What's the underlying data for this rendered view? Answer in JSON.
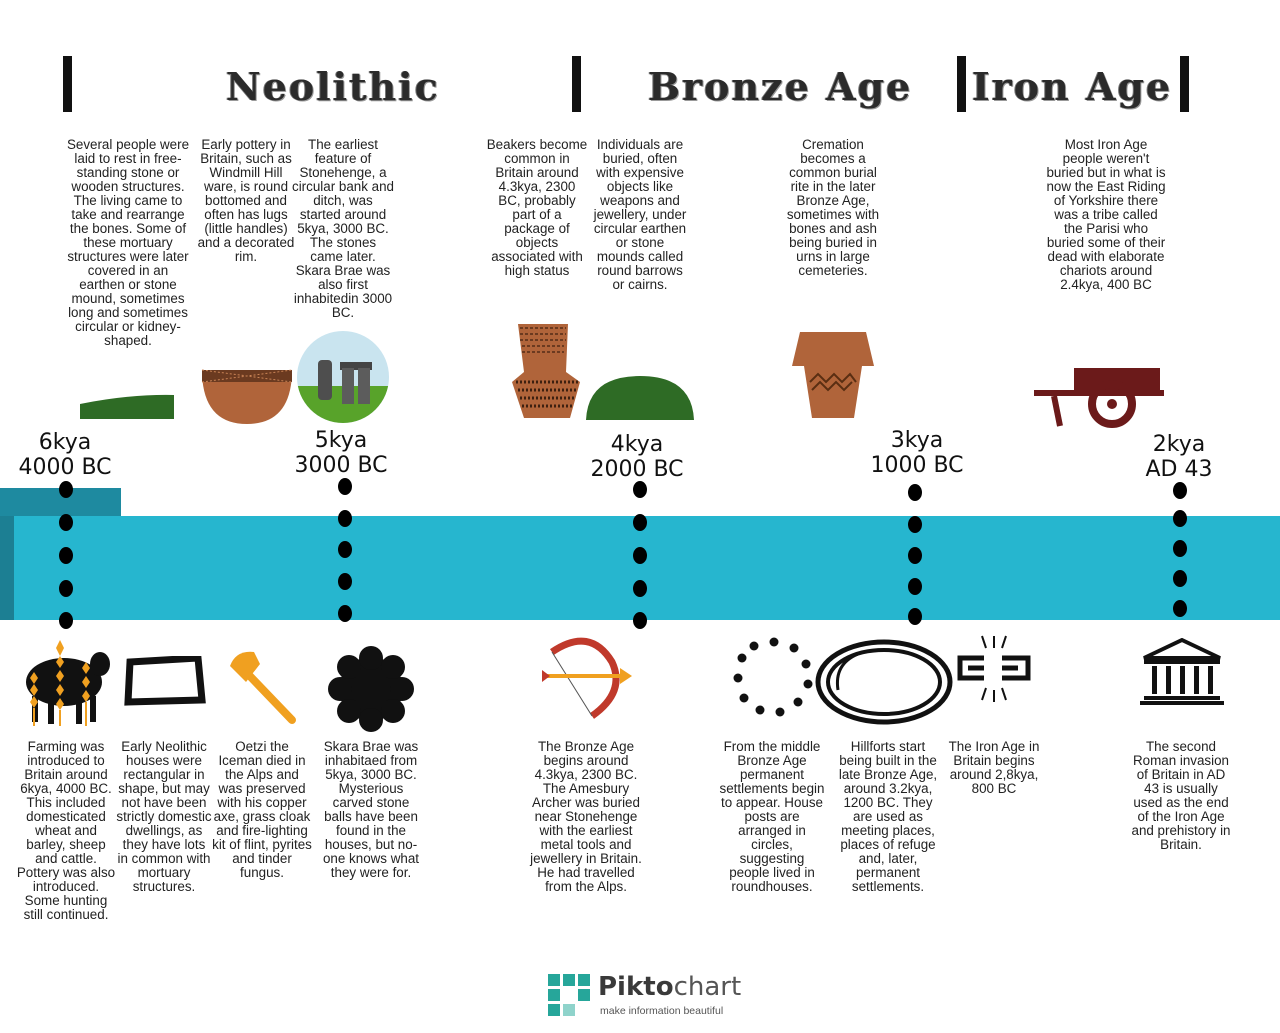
{
  "eras": {
    "neolithic": "Neolithic",
    "bronze": "Bronze Age",
    "iron": "Iron Age"
  },
  "dates": [
    {
      "kya": "6kya",
      "year": "4000 BC"
    },
    {
      "kya": "5kya",
      "year": "3000 BC"
    },
    {
      "kya": "4kya",
      "year": "2000 BC"
    },
    {
      "kya": "3kya",
      "year": "1000 BC"
    },
    {
      "kya": "2kya",
      "year": "AD 43"
    }
  ],
  "top_texts": [
    "Several people were laid to rest in free-standing stone or wooden structures. The living came to take and rearrange the bones. Some of these mortuary structures were later covered in an earthen or stone mound, sometimes long and sometimes circular or kidney-shaped.",
    "Early pottery in Britain, such as Windmill Hill ware, is round bottomed and often has lugs (little handles) and a decorated rim.",
    "The earliest feature of Stonehenge, a circular bank and ditch, was started around 5kya, 3000 BC. The stones came later. Skara Brae was also first inhabitedin 3000 BC.",
    "Beakers become common in Britain around 4.3kya, 2300 BC, probably part of a package of objects associated with high status",
    "Individuals are buried, often with expensive objects like weapons and jewellery, under circular earthen or stone mounds called round barrows or cairns.",
    "Cremation becomes a common burial rite in the later Bronze Age, sometimes with bones and ash being buried in urns in large cemeteries.",
    "Most Iron Age people weren't buried but in what is now the East Riding of Yorkshire there was a tribe called the Parisi who buried some of their dead with elaborate chariots around 2.4kya, 400 BC"
  ],
  "bottom_texts": [
    "Farming was introduced to Britain around 6kya, 4000 BC. This included domesticated wheat and barley, sheep and cattle. Pottery was also introduced. Some hunting still continued.",
    "Early Neolithic houses were rectangular in shape, but may not have been strictly domestic dwellings, as they have lots in common with mortuary structures.",
    "Oetzi the Iceman died in the Alps and was preserved with his copper axe, grass cloak and fire-lighting kit of flint, pyrites and tinder fungus.",
    "Skara Brae was inhabitaed from 5kya, 3000 BC. Mysterious carved stone balls have been found in the houses, but no-one knows what they were for.",
    "The Bronze Age begins around 4.3kya, 2300 BC. The Amesbury Archer was buried near Stonehenge with the earliest metal tools and jewellery in Britain. He had travelled from the Alps.",
    "From the middle Bronze Age permanent settlements begin to appear. House posts are arranged in circles, suggesting people lived in roundhouses.",
    "Hillforts start being built in the late Bronze Age, around 3.2kya, 1200 BC. They are used as meeting places, places of refuge and, later, permanent settlements.",
    "The Iron Age in Britain begins around 2,8kya, 800 BC",
    "The second Roman invasion of Britain in AD 43 is usually used as the end of the Iron Age and prehistory in Britain."
  ],
  "logo": {
    "name_a": "Pikto",
    "name_b": "chart",
    "tagline": "make information beautiful"
  },
  "colors": {
    "band": "#26b6cf",
    "band_dark": "#1e8aa0",
    "pottery": "#b0643a",
    "barrow": "#2e6b25",
    "chariot": "#6b1a1a",
    "orange": "#f0a020"
  }
}
